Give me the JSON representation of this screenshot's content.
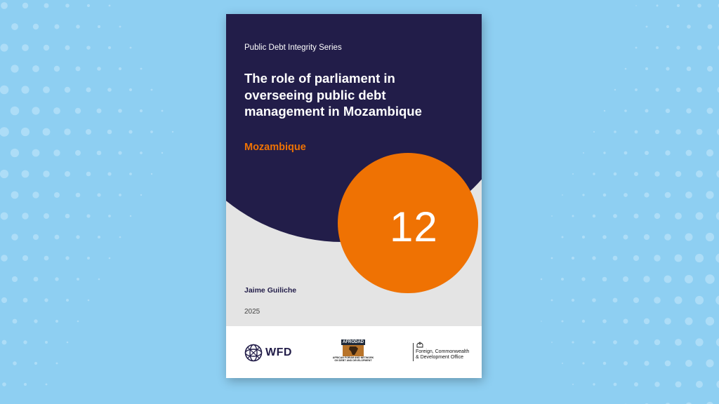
{
  "cover": {
    "series": "Public Debt Integrity Series",
    "title": "The role of parliament in overseeing public debt management in Mozambique",
    "country": "Mozambique",
    "number": "12",
    "author": "Jaime Guiliche",
    "year": "2025"
  },
  "logos": {
    "wfd": "WFD",
    "afrodad": "AFRODAD",
    "afrodad_sub_1": "AFRICAN FORUM AND NETWORK",
    "afrodad_sub_2": "ON DEBT AND DEVELOPMENT",
    "fcdo_line_1": "Foreign, Commonwealth",
    "fcdo_line_2": "& Development Office"
  },
  "colors": {
    "background": "#8ecff2",
    "navy": "#221d49",
    "orange": "#ef7203",
    "cover_grey": "#e4e4e4"
  }
}
